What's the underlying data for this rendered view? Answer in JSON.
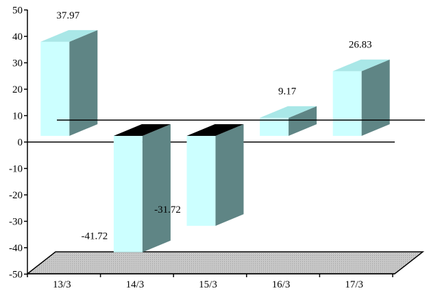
{
  "chart_data": {
    "type": "bar",
    "categories": [
      "13/3",
      "14/3",
      "15/3",
      "16/3",
      "17/3"
    ],
    "values": [
      37.97,
      -41.72,
      -31.72,
      9.17,
      26.83
    ],
    "value_labels": [
      "37.97",
      "-41.72",
      "-31.72",
      "9.17",
      "26.83"
    ],
    "ylim": [
      -50,
      50
    ],
    "yticks": [
      "50",
      "40",
      "30",
      "20",
      "10",
      "0",
      "-10",
      "-20",
      "-30",
      "-40",
      "-50"
    ],
    "title": "",
    "xlabel": "",
    "ylabel": "",
    "grid": false,
    "style": "3d"
  },
  "colors": {
    "bar_front": "#ccffff",
    "bar_side": "#5f8585",
    "bar_top_positive": "#a9e7e7",
    "bar_top_negative": "#000000",
    "floor": "#c0c0c0",
    "axis": "#000000"
  }
}
